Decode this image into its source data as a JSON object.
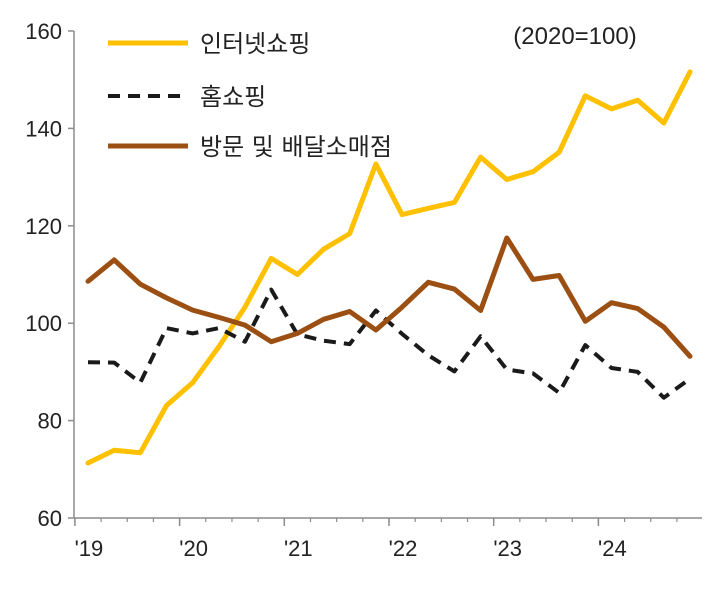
{
  "chart_data": {
    "type": "line",
    "note": "(2020=100)",
    "xlabel": "",
    "ylabel": "",
    "ylim": [
      60,
      160
    ],
    "yticks": [
      60,
      80,
      100,
      120,
      140,
      160
    ],
    "x_tick_labels": [
      "'19",
      "'20",
      "'21",
      "'22",
      "'23",
      "'24"
    ],
    "x_tick_quarter_index": [
      0,
      4,
      8,
      12,
      16,
      20
    ],
    "x_quarters": [
      "'19 Q1",
      "'19 Q2",
      "'19 Q3",
      "'19 Q4",
      "'20 Q1",
      "'20 Q2",
      "'20 Q3",
      "'20 Q4",
      "'21 Q1",
      "'21 Q2",
      "'21 Q3",
      "'21 Q4",
      "'22 Q1",
      "'22 Q2",
      "'22 Q3",
      "'22 Q4",
      "'23 Q1",
      "'23 Q2",
      "'23 Q3",
      "'23 Q4",
      "'24 Q1",
      "'24 Q2",
      "'24 Q3",
      "'24 Q4"
    ],
    "grid": false,
    "legend_position": "top-left",
    "series": [
      {
        "name": "인터넷쇼핑",
        "color": "#FFC000",
        "dash": "solid",
        "values": [
          71.3,
          73.9,
          73.4,
          83.1,
          87.8,
          95.2,
          103.3,
          113.3,
          110.0,
          115.2,
          118.4,
          132.7,
          122.3,
          123.6,
          124.8,
          134.1,
          129.5,
          131.1,
          135.1,
          146.7,
          144.0,
          145.8,
          141.1,
          151.6
        ]
      },
      {
        "name": "홈쇼핑",
        "color": "#1a1a1a",
        "dash": "dashed",
        "values": [
          92.0,
          91.9,
          87.8,
          99.0,
          97.9,
          99.0,
          96.2,
          106.9,
          97.7,
          96.4,
          95.7,
          102.6,
          97.8,
          93.4,
          90.1,
          97.3,
          90.5,
          89.7,
          85.7,
          95.5,
          90.8,
          90.0,
          84.7,
          88.6
        ]
      },
      {
        "name": "방문 및 배달소매점",
        "color": "#9C4F12",
        "dash": "solid",
        "values": [
          108.6,
          113.0,
          108.0,
          105.2,
          102.7,
          101.2,
          99.6,
          96.2,
          97.9,
          100.8,
          102.4,
          98.6,
          103.3,
          108.4,
          107.0,
          102.6,
          117.5,
          109.0,
          109.8,
          100.4,
          104.2,
          103.0,
          99.2,
          93.2
        ]
      }
    ]
  }
}
